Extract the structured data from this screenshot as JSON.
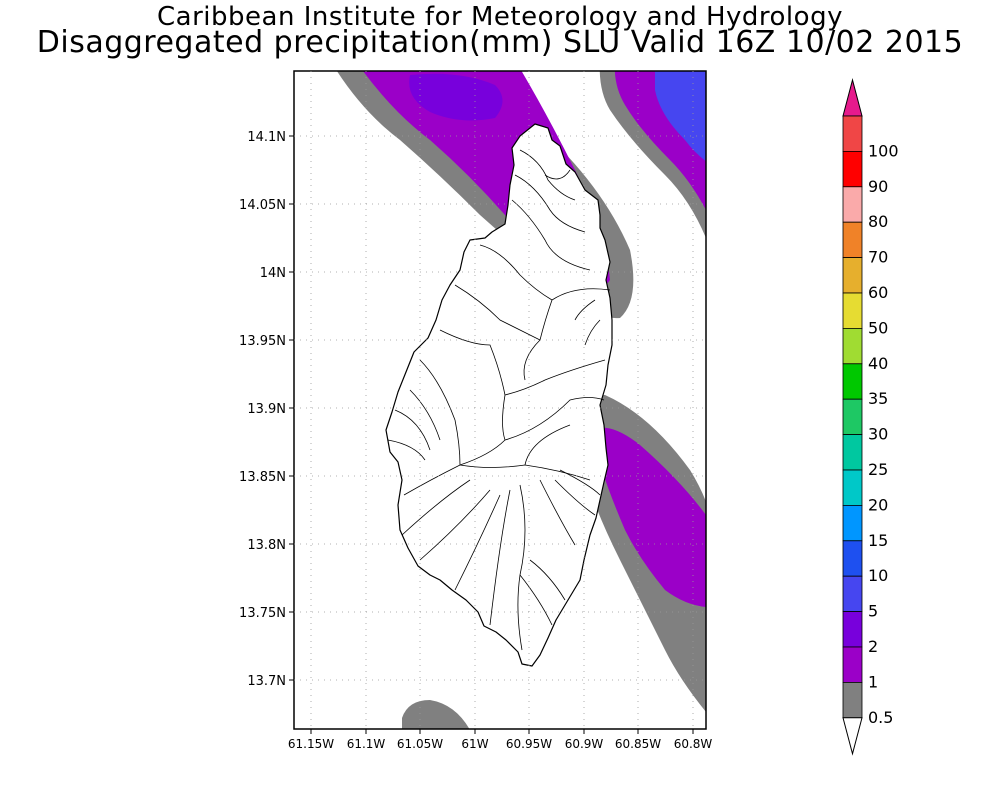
{
  "header": {
    "line1": "Caribbean Institute for Meteorology and Hydrology",
    "line2": "Disaggregated precipitation(mm) SLU Valid 16Z 10/02 2015"
  },
  "map": {
    "x_axis_ticks": [
      "61.15W",
      "61.1W",
      "61.05W",
      "61W",
      "60.95W",
      "60.9W",
      "60.85W",
      "60.8W"
    ],
    "y_axis_ticks": [
      "14.1N",
      "14.05N",
      "14N",
      "13.95N",
      "13.9N",
      "13.85N",
      "13.8N",
      "13.75N",
      "13.7N"
    ],
    "grid": "dotted"
  },
  "legend": {
    "labels": [
      "0.5",
      "1",
      "2",
      "5",
      "10",
      "15",
      "20",
      "25",
      "30",
      "35",
      "40",
      "50",
      "60",
      "70",
      "80",
      "90",
      "100"
    ],
    "colors": [
      "#ffffff",
      "#808080",
      "#9b00c8",
      "#7800dc",
      "#4646f0",
      "#1e50f0",
      "#0096ff",
      "#00c8c8",
      "#00c8a0",
      "#1ec864",
      "#00c800",
      "#a0dc32",
      "#e6dc32",
      "#e6af2d",
      "#f08228",
      "#faaaaa",
      "#ff0000",
      "#f04646",
      "#e61a8c"
    ],
    "upper_arrow_color": "#e61a8c",
    "lower_arrow_color": "#ffffff"
  },
  "colors": {
    "gray_band": "#808080",
    "purple_1": "#9b00c8",
    "purple_2": "#7800dc",
    "blue_5": "#4646f0"
  }
}
